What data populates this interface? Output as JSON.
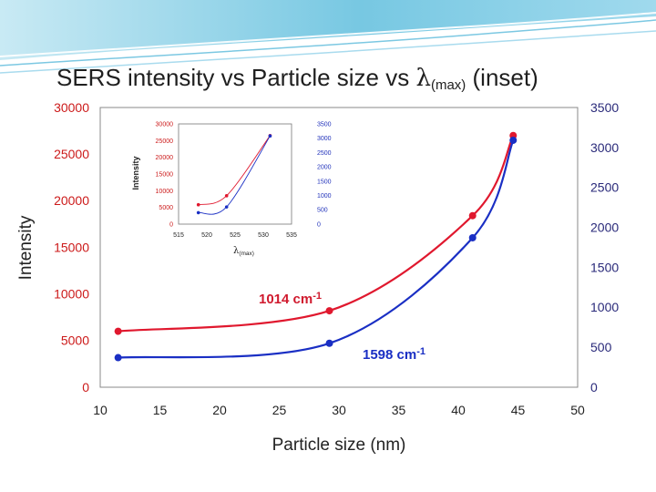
{
  "slide": {
    "title_main": "SERS intensity vs Particle size vs ",
    "title_lambda": "λ",
    "title_sub": "(max)",
    "title_tail": " (inset)"
  },
  "colors": {
    "red": "#e0182e",
    "blue": "#1a2fc4",
    "left_axis": "#cc1a1a",
    "right_axis": "#2233bb",
    "banner": "#4fb7d8"
  },
  "chart_data": [
    {
      "type": "line",
      "xlabel": "Particle size (nm)",
      "ylabel": "Intensity",
      "xlim": [
        10,
        50
      ],
      "xticks": [
        10,
        15,
        20,
        25,
        30,
        35,
        40,
        45,
        50
      ],
      "ylim_left": [
        0,
        30000
      ],
      "yticks_left": [
        0,
        5000,
        10000,
        15000,
        20000,
        25000,
        30000
      ],
      "ylim_right": [
        0,
        3500
      ],
      "yticks_right": [
        0,
        500,
        1000,
        1500,
        2000,
        2500,
        3000,
        3500
      ],
      "grid": false,
      "series": [
        {
          "name": "1014 cm-1",
          "label_main": "1014 cm",
          "label_sup": "-1",
          "color": "red",
          "axis": "left",
          "x": [
            11.5,
            29.2,
            41.2,
            44.6
          ],
          "y": [
            6000,
            8200,
            18400,
            27000
          ]
        },
        {
          "name": "1598 cm-1",
          "label_main": "1598 cm",
          "label_sup": "-1",
          "color": "blue",
          "axis": "right",
          "x": [
            11.5,
            29.2,
            41.2,
            44.6
          ],
          "y": [
            370,
            550,
            1870,
            3090
          ]
        }
      ]
    },
    {
      "type": "line",
      "inset": true,
      "xlabel_main": "λ",
      "xlabel_sub": "(max)",
      "ylabel": "Intensity",
      "xlim": [
        515,
        535
      ],
      "xticks": [
        515,
        520,
        525,
        530,
        535
      ],
      "ylim_left": [
        0,
        30000
      ],
      "yticks_left": [
        0,
        5000,
        10000,
        15000,
        20000,
        25000,
        30000
      ],
      "ylim_right": [
        0,
        3500
      ],
      "yticks_right": [
        0,
        500,
        1000,
        1500,
        2000,
        2500,
        3000,
        3500
      ],
      "series": [
        {
          "color": "red",
          "axis": "left",
          "x": [
            518.5,
            523.5,
            531.2
          ],
          "y": [
            5800,
            8500,
            26500
          ]
        },
        {
          "color": "blue",
          "axis": "right",
          "x": [
            518.5,
            523.5,
            531.2
          ],
          "y": [
            400,
            600,
            3080
          ]
        }
      ]
    }
  ]
}
